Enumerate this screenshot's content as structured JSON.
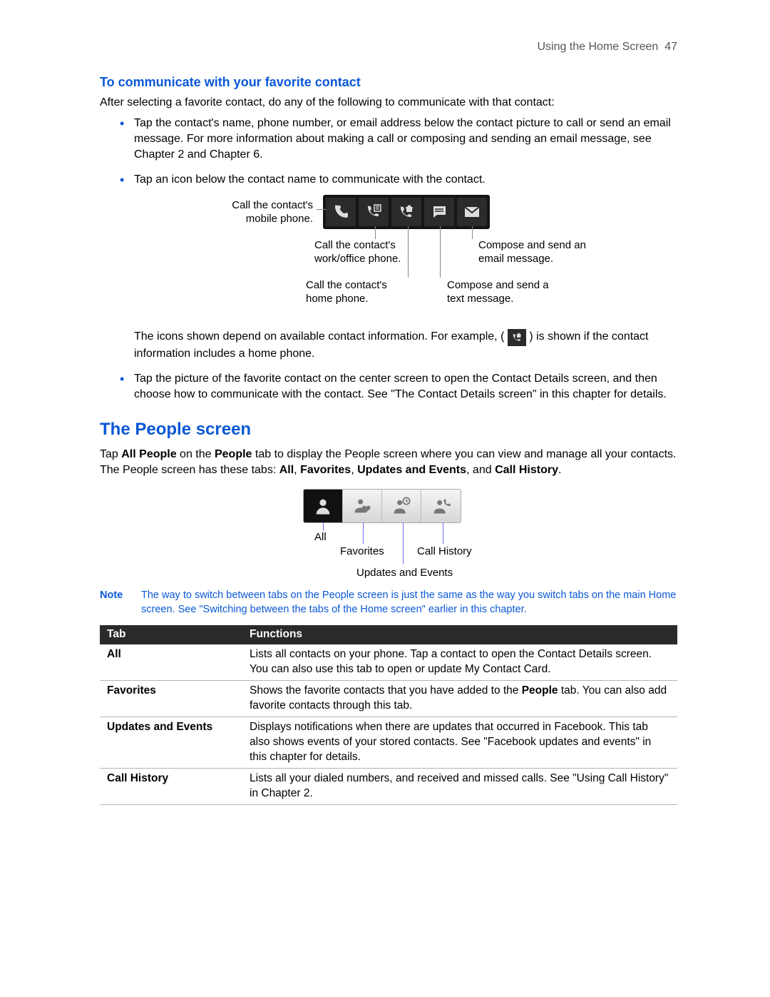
{
  "header": {
    "section": "Using the Home Screen",
    "page": "47"
  },
  "subsection_title": "To communicate with your favorite contact",
  "intro": "After selecting a favorite contact, do any of the following to communicate with that contact:",
  "bullets": {
    "b0": "Tap the contact's name, phone number, or email address below the contact picture to call or send an email message. For more information about making a call or composing and sending an email message, see Chapter 2 and Chapter 6.",
    "b1": "Tap an icon below the contact name to communicate with the contact."
  },
  "icon_diagram": {
    "labels": {
      "mobile": "Call the contact's\nmobile phone.",
      "work": "Call the contact's\nwork/office phone.",
      "home": "Call the contact's\nhome phone.",
      "text": "Compose and send a\ntext message.",
      "email": "Compose and send an\nemail message."
    }
  },
  "icons_note_a": "The icons shown depend on available contact information. For example, (",
  "icons_note_b": ") is shown if the contact information includes a home phone.",
  "bullet2": "Tap the picture of the favorite contact on the center screen to open the Contact Details screen, and then choose how to communicate with the contact. See \"The Contact Details screen\" in this chapter for details.",
  "h2": "The People screen",
  "people_para_a": "Tap ",
  "people_para_b": " on the ",
  "people_para_c": " tab to display the People screen where you can view and manage all your contacts. The People screen has these tabs: ",
  "bold_all_people": "All People",
  "bold_people": "People",
  "bold_all": "All",
  "bold_fav": "Favorites",
  "bold_upd": "Updates and Events",
  "bold_ch": "Call History",
  "tabs_labels": {
    "all": "All",
    "fav": "Favorites",
    "upd": "Updates and Events",
    "ch": "Call History"
  },
  "note_label": "Note",
  "note_text": "The way to switch between tabs on the People screen is just the same as the way you switch tabs on the main Home screen. See \"Switching between the tabs of the Home screen\" earlier in this chapter.",
  "table": {
    "head": {
      "c0": "Tab",
      "c1": "Functions"
    },
    "rows": [
      {
        "tab": "All",
        "func": "Lists all contacts on your phone. Tap a contact to open the Contact Details screen. You can also use this tab to open or update My Contact Card."
      },
      {
        "tab": "Favorites",
        "func_a": "Shows the favorite contacts that you have added to the ",
        "func_bold": "People",
        "func_b": " tab. You can also add favorite contacts through this tab."
      },
      {
        "tab": "Updates and Events",
        "func": "Displays notifications when there are updates that occurred in Facebook. This tab also shows events of your stored contacts. See \"Facebook updates and events\" in this chapter for details."
      },
      {
        "tab": "Call History",
        "func": "Lists all your dialed numbers, and received and missed calls. See \"Using Call History\" in Chapter 2."
      }
    ]
  }
}
